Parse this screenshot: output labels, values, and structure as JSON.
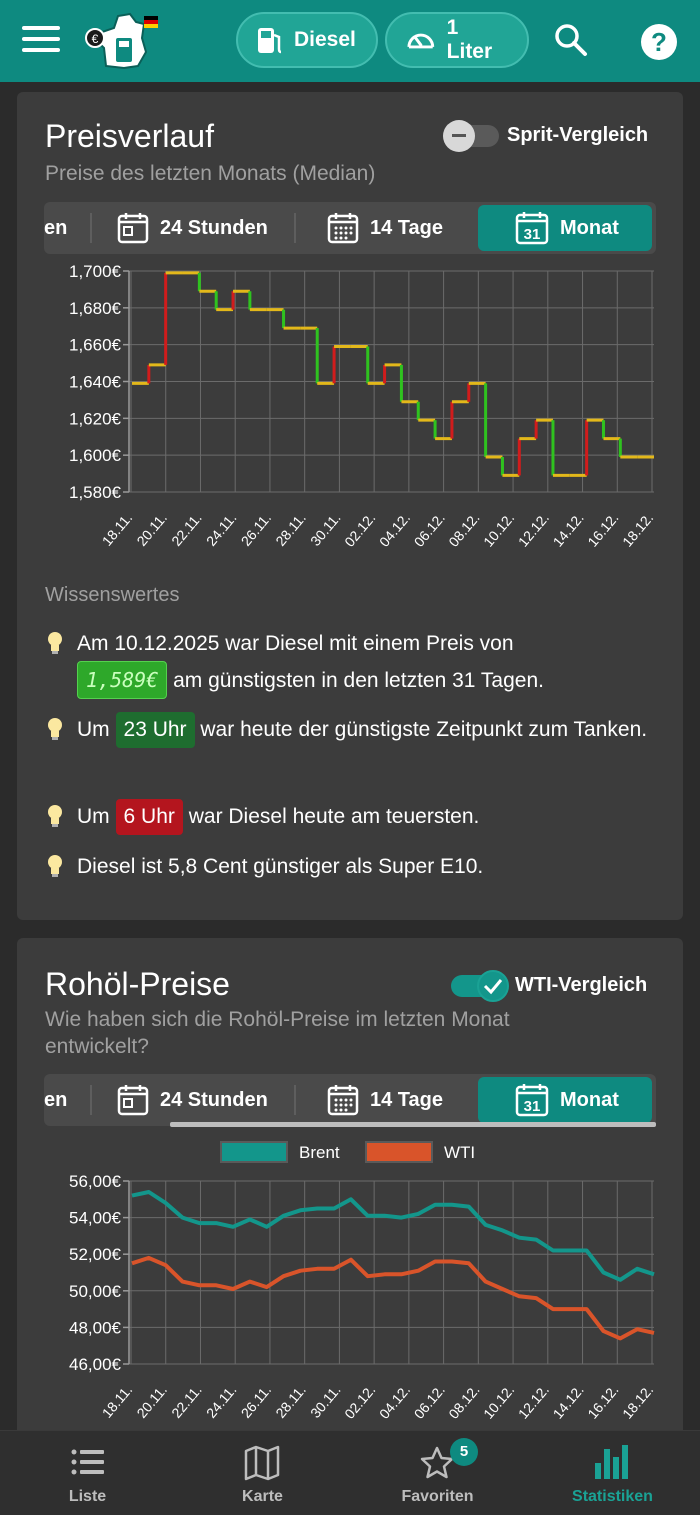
{
  "appbar": {
    "fuel_label": "Diesel",
    "amount_label": "1 Liter"
  },
  "price_card": {
    "title": "Preisverlauf",
    "subtitle": "Preise des letzten Monats (Median)",
    "toggle_label": "Sprit-Vergleich",
    "toggle_on": false,
    "tabs": [
      "en",
      "24 Stunden",
      "14 Tage",
      "Monat"
    ],
    "tab_day_num": "31",
    "active_tab": "Monat",
    "chart_data": {
      "type": "line",
      "title": "",
      "xlabel": "",
      "ylabel": "",
      "ylim": [
        1.58,
        1.7
      ],
      "y_ticks": [
        "1,700€",
        "1,680€",
        "1,660€",
        "1,640€",
        "1,620€",
        "1,600€",
        "1,580€"
      ],
      "x_ticks": [
        "18.11.",
        "20.11.",
        "22.11.",
        "24.11.",
        "26.11.",
        "28.11.",
        "30.11.",
        "02.12.",
        "04.12.",
        "06.12.",
        "08.12.",
        "10.12.",
        "12.12.",
        "14.12.",
        "16.12.",
        "18.12."
      ],
      "series": [
        {
          "values": [
            1.639,
            1.649,
            1.699,
            1.699,
            1.689,
            1.679,
            1.689,
            1.679,
            1.679,
            1.669,
            1.669,
            1.639,
            1.659,
            1.659,
            1.639,
            1.649,
            1.629,
            1.619,
            1.609,
            1.629,
            1.639,
            1.599,
            1.589,
            1.609,
            1.619,
            1.589,
            1.589,
            1.619,
            1.609,
            1.599,
            1.599,
            1.599
          ]
        }
      ],
      "step_colors": {
        "up": "#d11c1c",
        "down": "#2fc21f",
        "flat": "#e3b81a"
      },
      "grid": true
    },
    "knowledge_label": "Wissenswertes",
    "facts": {
      "f1_pre": "Am 10.12.2025 war Diesel mit einem Preis von",
      "f1_badge": "1,589€",
      "f1_post": "am günstigsten in den letzten 31 Tagen.",
      "f2_pre": "Um",
      "f2_badge": "23 Uhr",
      "f2_post": "war heute der günstigste Zeitpunkt zum Tanken.",
      "f3_pre": "Um",
      "f3_badge": "6 Uhr",
      "f3_post": "war Diesel heute am teuersten.",
      "f4": "Diesel ist 5,8 Cent günstiger als Super E10."
    }
  },
  "oil_card": {
    "title": "Rohöl-Preise",
    "subtitle": "Wie haben sich die Rohöl-Preise im letzten Monat entwickelt?",
    "toggle_label": "WTI-Vergleich",
    "toggle_on": true,
    "tabs": [
      "en",
      "24 Stunden",
      "14 Tage",
      "Monat"
    ],
    "tab_day_num": "31",
    "active_tab": "Monat",
    "chart_data": {
      "type": "line",
      "title": "",
      "xlabel": "",
      "ylabel": "",
      "ylim": [
        46,
        56
      ],
      "y_ticks": [
        "56,00€",
        "54,00€",
        "52,00€",
        "50,00€",
        "48,00€",
        "46,00€"
      ],
      "x_ticks": [
        "18.11.",
        "20.11.",
        "22.11.",
        "24.11.",
        "26.11.",
        "28.11.",
        "30.11.",
        "02.12.",
        "04.12.",
        "06.12.",
        "08.12.",
        "10.12.",
        "12.12.",
        "14.12.",
        "16.12.",
        "18.12."
      ],
      "legend": "top",
      "grid": true,
      "series": [
        {
          "name": "Brent",
          "color": "#13968b",
          "values": [
            55.2,
            55.4,
            54.8,
            54.0,
            53.7,
            53.7,
            53.5,
            53.9,
            53.5,
            54.1,
            54.4,
            54.5,
            54.5,
            55.0,
            54.1,
            54.1,
            54.0,
            54.2,
            54.7,
            54.7,
            54.6,
            53.6,
            53.3,
            52.9,
            52.8,
            52.2,
            52.2,
            52.2,
            51.0,
            50.6,
            51.2,
            50.9
          ]
        },
        {
          "name": "WTI",
          "color": "#d9542a",
          "values": [
            51.5,
            51.8,
            51.4,
            50.5,
            50.3,
            50.3,
            50.1,
            50.5,
            50.2,
            50.8,
            51.1,
            51.2,
            51.2,
            51.7,
            50.8,
            50.9,
            50.9,
            51.1,
            51.6,
            51.6,
            51.5,
            50.5,
            50.1,
            49.7,
            49.6,
            49.0,
            49.0,
            49.0,
            47.8,
            47.4,
            47.9,
            47.7
          ]
        }
      ]
    }
  },
  "bottomnav": {
    "items": [
      {
        "label": "Liste",
        "icon": "list-icon"
      },
      {
        "label": "Karte",
        "icon": "map-icon"
      },
      {
        "label": "Favoriten",
        "icon": "star-icon"
      },
      {
        "label": "Statistiken",
        "icon": "bar-chart-icon"
      }
    ],
    "favorites_count": "5",
    "active": "Statistiken"
  },
  "colors": {
    "accent": "#0e8a80",
    "card_bg": "#3c3c3c",
    "page_bg": "#2b2b2b"
  }
}
